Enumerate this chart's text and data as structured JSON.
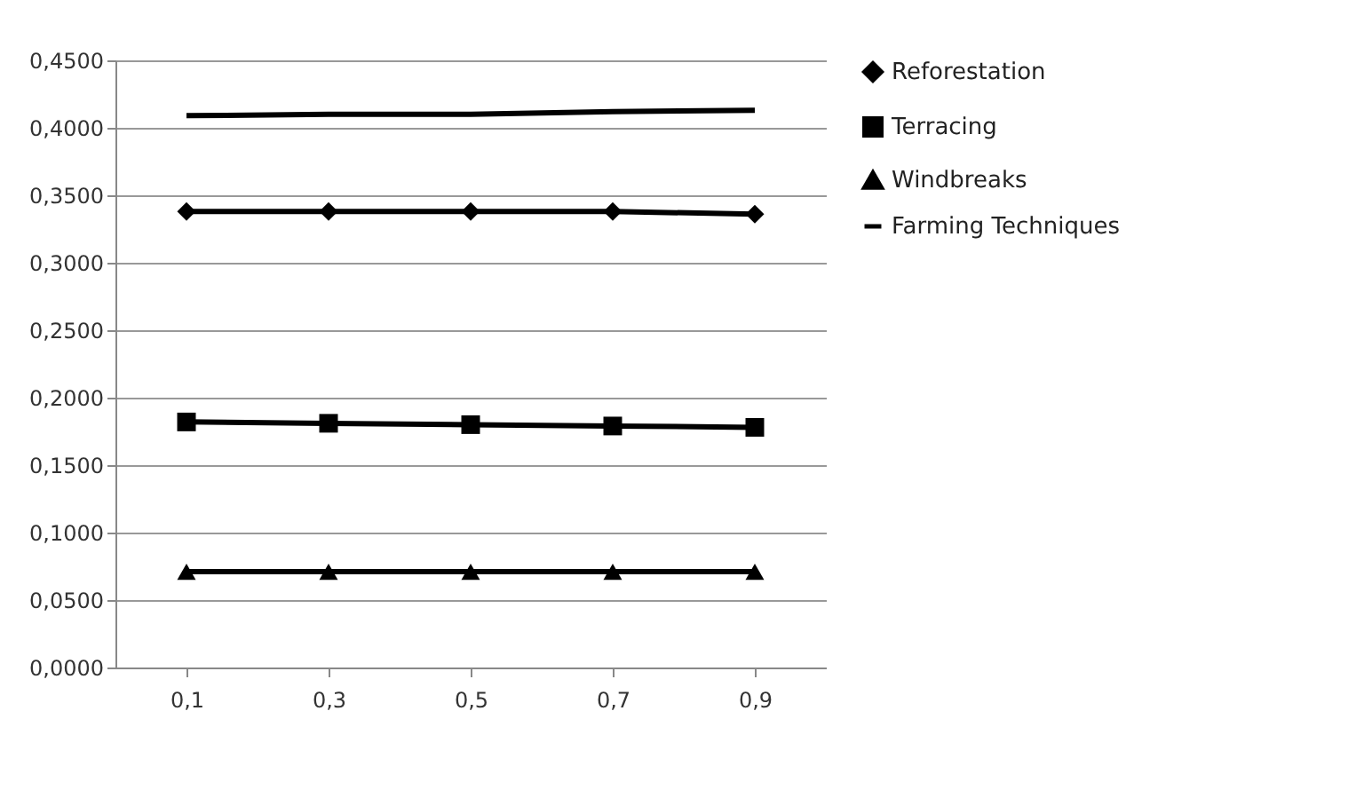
{
  "chart_data": {
    "type": "line",
    "categories": [
      "0,1",
      "0,3",
      "0,5",
      "0,7",
      "0,9"
    ],
    "series": [
      {
        "name": "Reforestation",
        "color": "#000000",
        "marker": "diamond",
        "values": [
          0.338,
          0.338,
          0.338,
          0.338,
          0.336
        ]
      },
      {
        "name": "Terracing",
        "color": "#000000",
        "marker": "square",
        "values": [
          0.182,
          0.181,
          0.18,
          0.179,
          0.178
        ]
      },
      {
        "name": "Windbreaks",
        "color": "#000000",
        "marker": "triangle",
        "values": [
          0.071,
          0.071,
          0.071,
          0.071,
          0.071
        ]
      },
      {
        "name": "Farming Techniques",
        "color": "#000000",
        "marker": "none",
        "values": [
          0.409,
          0.41,
          0.41,
          0.412,
          0.413
        ]
      }
    ],
    "ylim": [
      0,
      0.45
    ],
    "yticks": [
      {
        "value": 0,
        "label": "0,0000"
      },
      {
        "value": 0.05,
        "label": "0,0500"
      },
      {
        "value": 0.1,
        "label": "0,1000"
      },
      {
        "value": 0.15,
        "label": "0,1500"
      },
      {
        "value": 0.2,
        "label": "0,2000"
      },
      {
        "value": 0.25,
        "label": "0,2500"
      },
      {
        "value": 0.3,
        "label": "0,3000"
      },
      {
        "value": 0.35,
        "label": "0,3500"
      },
      {
        "value": 0.4,
        "label": "0,4000"
      },
      {
        "value": 0.45,
        "label": "0,4500"
      }
    ],
    "grid": "y",
    "legend": "right"
  }
}
